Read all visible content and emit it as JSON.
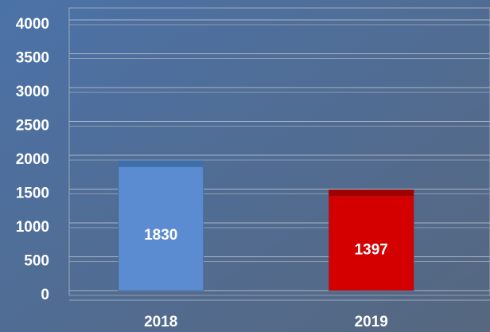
{
  "chart_data": {
    "type": "bar",
    "categories": [
      "2018",
      "2019"
    ],
    "values": [
      1830,
      1397
    ],
    "colors": [
      "#5b8bd0",
      "#d40000"
    ],
    "cap_colors": [
      "#3f6fa8",
      "#a00000"
    ],
    "ylim": [
      0,
      4000
    ],
    "yticks": [
      0,
      500,
      1000,
      1500,
      2000,
      2500,
      3000,
      3500,
      4000
    ],
    "grid": true
  }
}
